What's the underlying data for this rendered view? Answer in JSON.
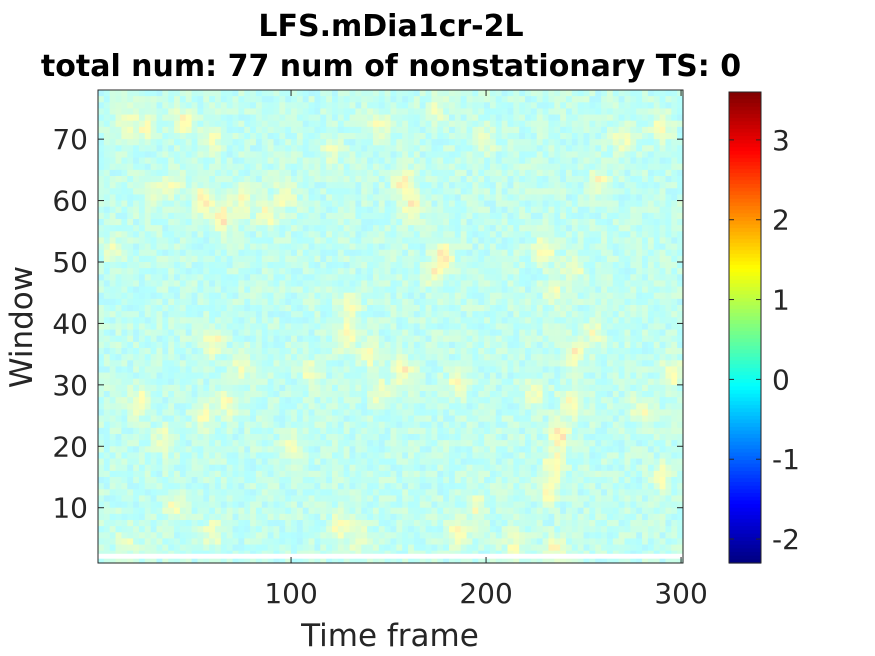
{
  "chart_data": {
    "type": "heatmap",
    "title_line1": "LFS.mDia1cr-2L",
    "title_line2": "total num: 77 num of nonstationary TS: 0",
    "xlabel": "Time frame",
    "ylabel": "Window",
    "xlim": [
      1,
      301
    ],
    "ylim": [
      1,
      78
    ],
    "xticks": [
      100,
      200,
      300
    ],
    "yticks": [
      10,
      20,
      30,
      40,
      50,
      60,
      70
    ],
    "colorbar": {
      "colormap": "jet",
      "clim": [
        -2.3,
        3.6
      ],
      "ticks": [
        -2,
        -1,
        0,
        1,
        2,
        3
      ]
    },
    "background_value": 0.2,
    "blank_row_window": 2,
    "hotspots": [
      {
        "t": 55,
        "w": 60,
        "v": 1.6
      },
      {
        "t": 65,
        "w": 57,
        "v": 1.5
      },
      {
        "t": 75,
        "w": 60,
        "v": 1.2
      },
      {
        "t": 88,
        "w": 58,
        "v": 1.3
      },
      {
        "t": 97,
        "w": 61,
        "v": 1.1
      },
      {
        "t": 30,
        "w": 61,
        "v": 1.0
      },
      {
        "t": 40,
        "w": 63,
        "v": 0.9
      },
      {
        "t": 15,
        "w": 73,
        "v": 1.1
      },
      {
        "t": 25,
        "w": 72,
        "v": 1.0
      },
      {
        "t": 45,
        "w": 73,
        "v": 1.2
      },
      {
        "t": 60,
        "w": 70,
        "v": 1.0
      },
      {
        "t": 8,
        "w": 52,
        "v": 0.9
      },
      {
        "t": 60,
        "w": 37,
        "v": 1.3
      },
      {
        "t": 75,
        "w": 33,
        "v": 1.0
      },
      {
        "t": 22,
        "w": 27,
        "v": 1.3
      },
      {
        "t": 35,
        "w": 21,
        "v": 1.0
      },
      {
        "t": 55,
        "w": 25,
        "v": 1.1
      },
      {
        "t": 68,
        "w": 27,
        "v": 1.0
      },
      {
        "t": 40,
        "w": 10,
        "v": 1.1
      },
      {
        "t": 15,
        "w": 4,
        "v": 0.9
      },
      {
        "t": 60,
        "w": 6,
        "v": 1.0
      },
      {
        "t": 128,
        "w": 38,
        "v": 1.3
      },
      {
        "t": 130,
        "w": 43,
        "v": 1.2
      },
      {
        "t": 140,
        "w": 35,
        "v": 1.1
      },
      {
        "t": 125,
        "w": 7,
        "v": 1.2
      },
      {
        "t": 135,
        "w": 5,
        "v": 1.0
      },
      {
        "t": 145,
        "w": 29,
        "v": 1.0
      },
      {
        "t": 158,
        "w": 63,
        "v": 1.6
      },
      {
        "t": 162,
        "w": 59,
        "v": 1.3
      },
      {
        "t": 158,
        "w": 32,
        "v": 1.4
      },
      {
        "t": 145,
        "w": 72,
        "v": 1.0
      },
      {
        "t": 178,
        "w": 51,
        "v": 1.4
      },
      {
        "t": 174,
        "w": 48,
        "v": 1.2
      },
      {
        "t": 185,
        "w": 30,
        "v": 1.0
      },
      {
        "t": 185,
        "w": 6,
        "v": 1.4
      },
      {
        "t": 195,
        "w": 10,
        "v": 1.0
      },
      {
        "t": 230,
        "w": 52,
        "v": 1.2
      },
      {
        "t": 245,
        "w": 49,
        "v": 1.2
      },
      {
        "t": 235,
        "w": 45,
        "v": 1.0
      },
      {
        "t": 245,
        "w": 35,
        "v": 1.3
      },
      {
        "t": 243,
        "w": 27,
        "v": 1.3
      },
      {
        "t": 238,
        "w": 22,
        "v": 1.6
      },
      {
        "t": 235,
        "w": 17,
        "v": 1.4
      },
      {
        "t": 232,
        "w": 13,
        "v": 1.3
      },
      {
        "t": 225,
        "w": 29,
        "v": 1.0
      },
      {
        "t": 215,
        "w": 4,
        "v": 1.0
      },
      {
        "t": 235,
        "w": 3,
        "v": 1.2
      },
      {
        "t": 255,
        "w": 38,
        "v": 1.0
      },
      {
        "t": 258,
        "w": 63,
        "v": 1.2
      },
      {
        "t": 270,
        "w": 70,
        "v": 1.0
      },
      {
        "t": 290,
        "w": 72,
        "v": 1.2
      },
      {
        "t": 295,
        "w": 32,
        "v": 1.3
      },
      {
        "t": 290,
        "w": 15,
        "v": 1.1
      },
      {
        "t": 280,
        "w": 26,
        "v": 1.0
      },
      {
        "t": 110,
        "w": 32,
        "v": 1.0
      },
      {
        "t": 100,
        "w": 20,
        "v": 0.9
      },
      {
        "t": 200,
        "w": 70,
        "v": 0.8
      },
      {
        "t": 175,
        "w": 75,
        "v": 0.8
      },
      {
        "t": 120,
        "w": 68,
        "v": 0.8
      }
    ]
  }
}
